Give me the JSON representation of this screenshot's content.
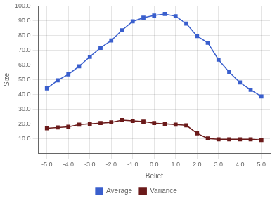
{
  "chart_data": {
    "type": "line",
    "xlabel": "Belief",
    "ylabel": "Size",
    "x": [
      -5.0,
      -4.5,
      -4.0,
      -3.5,
      -3.0,
      -2.5,
      -2.0,
      -1.5,
      -1.0,
      -0.5,
      0.0,
      0.5,
      1.0,
      1.5,
      2.0,
      2.5,
      3.0,
      3.5,
      4.0,
      4.5,
      5.0
    ],
    "series": [
      {
        "name": "Average",
        "color": "#3A5FCD",
        "marker": "square",
        "values": [
          44.0,
          49.5,
          53.5,
          59.0,
          65.5,
          71.5,
          76.5,
          83.5,
          89.5,
          92.0,
          93.5,
          94.5,
          93.0,
          88.0,
          79.5,
          75.0,
          63.5,
          55.0,
          48.0,
          43.0,
          38.5
        ]
      },
      {
        "name": "Variance",
        "color": "#6B1A1A",
        "marker": "square",
        "values": [
          17.0,
          17.5,
          18.0,
          19.5,
          20.0,
          20.5,
          21.0,
          22.5,
          22.0,
          21.5,
          20.5,
          20.0,
          19.5,
          19.0,
          13.5,
          10.0,
          9.5,
          9.5,
          9.5,
          9.5,
          9.0
        ]
      }
    ],
    "xlim": [
      -5.4,
      5.4
    ],
    "ylim": [
      0,
      100
    ],
    "xticks": [
      {
        "value": -5,
        "label": "-5.0"
      },
      {
        "value": -4,
        "label": "-4.0"
      },
      {
        "value": -3,
        "label": "-3.0"
      },
      {
        "value": -2,
        "label": "-2.0"
      },
      {
        "value": -1,
        "label": "-1.0"
      },
      {
        "value": 0,
        "label": "0.0"
      },
      {
        "value": 1,
        "label": "1.0"
      },
      {
        "value": 2,
        "label": "2.0"
      },
      {
        "value": 3,
        "label": "3.0"
      },
      {
        "value": 4,
        "label": "4.0"
      },
      {
        "value": 5,
        "label": "5.0"
      }
    ],
    "yticks": [
      {
        "value": 10,
        "label": "10.0"
      },
      {
        "value": 20,
        "label": "20.0"
      },
      {
        "value": 30,
        "label": "30.0"
      },
      {
        "value": 40,
        "label": "40.0"
      },
      {
        "value": 50,
        "label": "50.0"
      },
      {
        "value": 60,
        "label": "60.0"
      },
      {
        "value": 70,
        "label": "70.0"
      },
      {
        "value": 80,
        "label": "80.0"
      },
      {
        "value": 90,
        "label": "90.0"
      },
      {
        "value": 100,
        "label": "100.0"
      }
    ],
    "grid": true,
    "legend": "bottom"
  }
}
